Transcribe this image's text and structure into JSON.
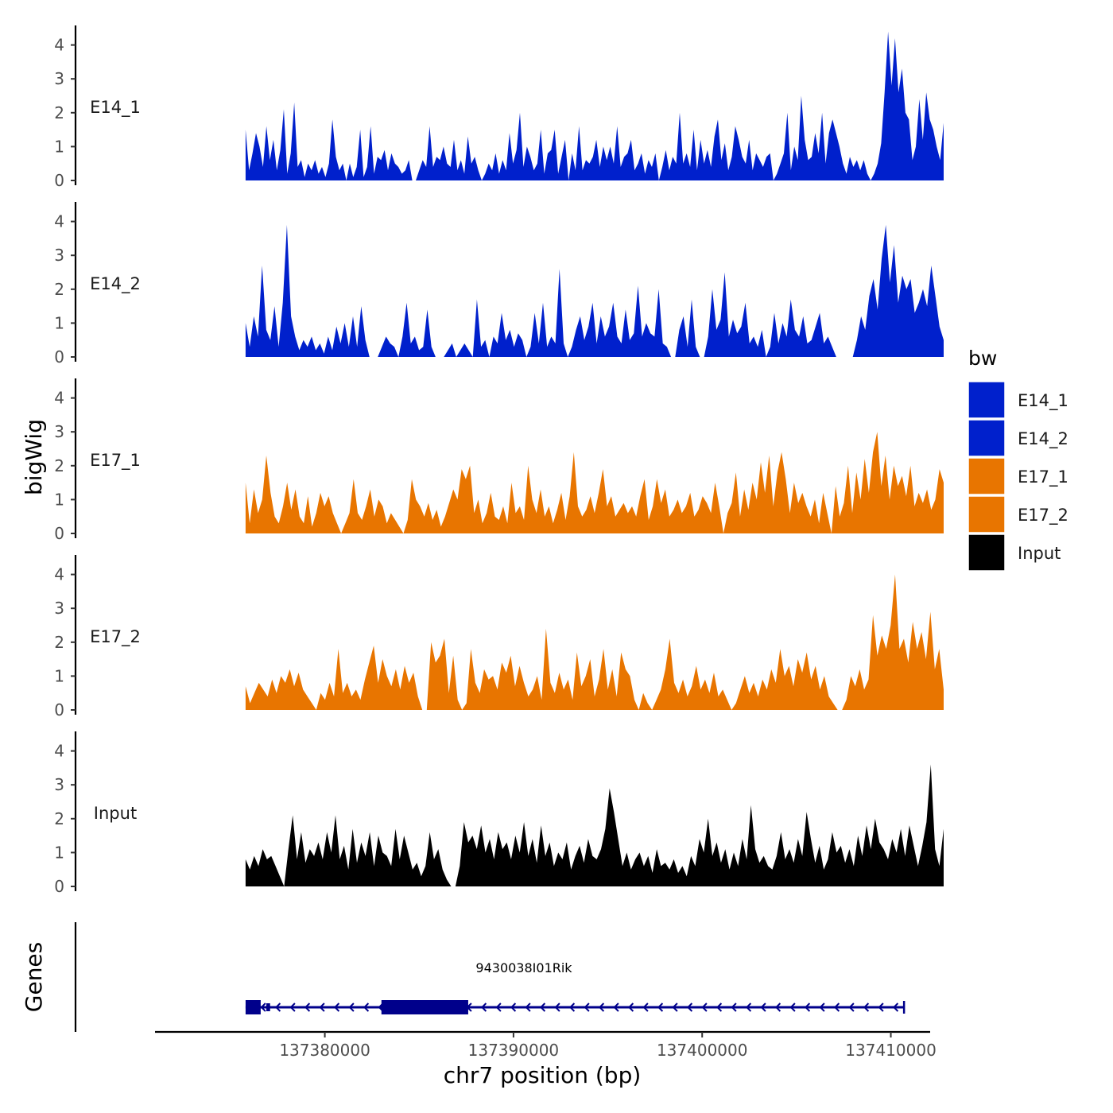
{
  "chart_data": {
    "type": "area",
    "layout": "stacked-tracks",
    "ylabel": "bigWig",
    "xlabel": "chr7 position (bp)",
    "xlim": [
      137371000,
      137412000
    ],
    "x_start": 137375800,
    "x_end": 137412800,
    "ylim": [
      0,
      4.5
    ],
    "y_ticks": [
      0,
      1,
      2,
      3,
      4
    ],
    "x_ticks": [
      137380000,
      137390000,
      137400000,
      137410000
    ],
    "x_tick_labels": [
      "137380000",
      "137390000",
      "137400000",
      "137410000"
    ],
    "legend": {
      "title": "bw",
      "placement": "right",
      "entries": [
        {
          "name": "E14_1",
          "color": "#0020CC"
        },
        {
          "name": "E14_2",
          "color": "#0020CC"
        },
        {
          "name": "E17_1",
          "color": "#E87500"
        },
        {
          "name": "E17_2",
          "color": "#E87500"
        },
        {
          "name": "Input",
          "color": "#000000"
        }
      ]
    },
    "series": [
      {
        "name": "E14_1",
        "label": "E14_1",
        "color": "#0020CC",
        "values": [
          1.5,
          0.3,
          0.8,
          1.4,
          1.0,
          0.4,
          1.6,
          0.6,
          1.2,
          0.3,
          0.9,
          2.1,
          0.2,
          0.8,
          2.3,
          0.4,
          0.6,
          0.1,
          0.5,
          0.3,
          0.6,
          0.2,
          0.4,
          0.1,
          0.5,
          1.8,
          0.7,
          0.3,
          0.5,
          0.0,
          0.5,
          0.1,
          0.4,
          1.5,
          0.1,
          0.4,
          1.6,
          0.2,
          0.7,
          0.6,
          0.9,
          0.3,
          0.8,
          0.5,
          0.4,
          0.2,
          0.3,
          0.6,
          0.0,
          0.0,
          0.3,
          0.6,
          0.4,
          1.6,
          0.4,
          0.7,
          0.6,
          1.0,
          0.5,
          0.4,
          1.2,
          0.3,
          0.6,
          0.2,
          1.3,
          0.5,
          0.7,
          0.3,
          0.0,
          0.2,
          0.5,
          0.3,
          0.8,
          0.2,
          0.6,
          0.3,
          1.4,
          0.5,
          0.9,
          2.0,
          0.4,
          1.0,
          0.7,
          0.3,
          0.5,
          1.5,
          0.2,
          0.8,
          0.9,
          1.5,
          0.2,
          0.7,
          1.2,
          0.0,
          0.8,
          0.3,
          1.6,
          0.3,
          0.6,
          0.5,
          0.7,
          1.2,
          0.4,
          1.0,
          0.6,
          1.0,
          0.5,
          1.6,
          0.4,
          0.7,
          0.8,
          1.2,
          0.3,
          0.5,
          0.8,
          0.2,
          0.6,
          0.4,
          0.8,
          0.0,
          0.4,
          0.9,
          0.3,
          0.7,
          0.5,
          2.0,
          0.5,
          0.8,
          0.4,
          1.5,
          0.3,
          1.2,
          0.5,
          0.9,
          0.4,
          1.3,
          1.8,
          0.6,
          1.1,
          0.3,
          0.7,
          1.6,
          1.2,
          0.7,
          0.5,
          1.2,
          0.3,
          0.8,
          0.6,
          0.4,
          0.7,
          0.8,
          0.0,
          0.2,
          0.5,
          0.8,
          2.0,
          0.3,
          1.0,
          0.6,
          2.5,
          1.2,
          0.6,
          0.7,
          1.4,
          0.8,
          2.0,
          0.5,
          1.4,
          1.8,
          1.4,
          1.0,
          0.5,
          0.2,
          0.7,
          0.4,
          0.6,
          0.3,
          0.6,
          0.2,
          0.0,
          0.2,
          0.5,
          1.1,
          2.6,
          4.4,
          2.8,
          4.2,
          2.6,
          3.3,
          2.0,
          1.8,
          0.6,
          1.0,
          2.4,
          1.2,
          2.6,
          1.8,
          1.5,
          1.0,
          0.6,
          1.7
        ]
      },
      {
        "name": "E14_2",
        "label": "E14_2",
        "color": "#0020CC",
        "values": [
          1.0,
          0.3,
          1.2,
          0.6,
          2.7,
          0.8,
          0.5,
          1.5,
          0.3,
          1.6,
          3.9,
          1.2,
          0.6,
          0.2,
          0.5,
          0.3,
          0.6,
          0.2,
          0.4,
          0.1,
          0.6,
          0.2,
          0.9,
          0.4,
          1.0,
          0.3,
          1.2,
          0.3,
          1.5,
          0.5,
          0.0,
          0.0,
          0.0,
          0.3,
          0.6,
          0.4,
          0.3,
          0.0,
          0.6,
          1.6,
          0.4,
          0.6,
          0.2,
          0.3,
          1.4,
          0.3,
          0.0,
          0.0,
          0.0,
          0.2,
          0.4,
          0.0,
          0.2,
          0.4,
          0.2,
          0.0,
          1.7,
          0.3,
          0.5,
          0.0,
          0.6,
          0.4,
          1.3,
          0.5,
          0.8,
          0.3,
          0.7,
          0.5,
          0.0,
          0.3,
          1.3,
          0.4,
          1.6,
          0.3,
          0.6,
          0.4,
          2.6,
          0.4,
          0.0,
          0.3,
          0.8,
          1.2,
          0.5,
          0.9,
          1.6,
          0.4,
          1.2,
          0.6,
          0.9,
          1.6,
          0.6,
          0.4,
          1.4,
          0.5,
          0.7,
          2.1,
          0.6,
          1.0,
          0.7,
          0.6,
          2.0,
          0.4,
          0.3,
          0.0,
          0.0,
          0.8,
          1.2,
          0.3,
          1.7,
          0.3,
          0.0,
          0.0,
          0.6,
          2.0,
          0.8,
          1.1,
          2.5,
          0.6,
          1.1,
          0.7,
          0.9,
          1.6,
          0.4,
          0.6,
          0.3,
          0.8,
          0.0,
          0.3,
          1.3,
          0.4,
          1.0,
          0.6,
          1.7,
          0.8,
          0.6,
          1.2,
          0.4,
          0.5,
          0.9,
          1.3,
          0.4,
          0.6,
          0.3,
          0.0,
          0.0,
          0.0,
          0.0,
          0.0,
          0.5,
          1.2,
          0.8,
          1.8,
          2.3,
          1.4,
          2.9,
          3.9,
          2.2,
          3.3,
          1.6,
          2.4,
          2.0,
          2.3,
          1.3,
          1.6,
          2.0,
          1.5,
          2.7,
          1.8,
          0.9,
          0.5
        ]
      },
      {
        "name": "E17_1",
        "label": "E17_1",
        "color": "#E87500",
        "values": [
          1.5,
          0.3,
          1.3,
          0.6,
          1.0,
          2.3,
          1.2,
          0.5,
          0.3,
          0.8,
          1.5,
          0.7,
          1.3,
          0.5,
          0.3,
          1.1,
          0.2,
          0.6,
          1.2,
          0.8,
          1.1,
          0.6,
          0.3,
          0.0,
          0.3,
          0.6,
          1.6,
          0.6,
          0.4,
          0.8,
          1.3,
          0.5,
          1.0,
          0.8,
          0.3,
          0.6,
          0.4,
          0.2,
          0.0,
          0.4,
          1.6,
          1.0,
          0.8,
          0.5,
          0.9,
          0.4,
          0.7,
          0.2,
          0.5,
          0.9,
          1.3,
          1.0,
          1.9,
          1.6,
          2.0,
          0.6,
          1.0,
          0.3,
          0.6,
          1.2,
          0.5,
          0.4,
          0.8,
          0.3,
          1.5,
          0.6,
          0.8,
          0.4,
          2.0,
          1.0,
          0.6,
          1.3,
          0.5,
          0.8,
          0.3,
          0.7,
          1.2,
          0.4,
          1.1,
          2.4,
          0.8,
          0.5,
          0.7,
          1.1,
          0.6,
          1.2,
          1.9,
          0.8,
          1.1,
          0.5,
          0.7,
          0.9,
          0.6,
          0.8,
          0.5,
          1.1,
          1.6,
          0.4,
          0.8,
          1.6,
          0.9,
          1.3,
          0.5,
          0.7,
          1.0,
          0.6,
          0.8,
          1.2,
          0.5,
          0.7,
          1.1,
          0.9,
          0.6,
          1.5,
          0.8,
          0.0,
          0.6,
          0.9,
          1.8,
          0.5,
          1.3,
          0.7,
          1.5,
          1.0,
          2.1,
          1.2,
          2.3,
          0.8,
          1.8,
          2.4,
          1.6,
          0.6,
          1.5,
          0.9,
          1.2,
          0.8,
          0.5,
          1.0,
          0.3,
          1.2,
          0.6,
          0.0,
          1.4,
          0.5,
          0.9,
          2.0,
          0.6,
          1.8,
          1.0,
          2.2,
          1.2,
          2.4,
          3.0,
          1.4,
          2.3,
          1.0,
          2.0,
          1.4,
          1.7,
          1.1,
          2.0,
          0.8,
          1.2,
          0.9,
          1.3,
          0.7,
          1.0,
          1.9,
          1.5
        ]
      },
      {
        "name": "E17_2",
        "label": "E17_2",
        "color": "#E87500",
        "values": [
          0.7,
          0.2,
          0.5,
          0.8,
          0.6,
          0.4,
          0.9,
          0.5,
          1.0,
          0.8,
          1.2,
          0.7,
          1.1,
          0.6,
          0.4,
          0.2,
          0.0,
          0.5,
          0.3,
          0.8,
          0.4,
          1.8,
          0.5,
          0.8,
          0.4,
          0.6,
          0.3,
          0.9,
          1.4,
          1.9,
          0.8,
          1.5,
          1.0,
          0.7,
          1.2,
          0.6,
          1.3,
          0.8,
          1.1,
          0.4,
          0.0,
          0.0,
          2.0,
          1.4,
          1.6,
          2.1,
          0.5,
          1.6,
          0.3,
          0.0,
          0.2,
          1.8,
          0.8,
          0.5,
          1.2,
          0.9,
          1.0,
          0.6,
          1.4,
          1.1,
          1.6,
          0.7,
          1.3,
          0.8,
          0.4,
          0.6,
          1.0,
          0.3,
          2.4,
          0.8,
          0.5,
          1.1,
          0.6,
          0.9,
          0.3,
          1.7,
          0.7,
          1.0,
          1.5,
          0.4,
          0.9,
          1.8,
          0.6,
          1.2,
          0.4,
          1.7,
          1.2,
          1.0,
          0.3,
          0.0,
          0.5,
          0.2,
          0.0,
          0.3,
          0.6,
          1.2,
          2.1,
          0.8,
          0.5,
          0.9,
          0.4,
          0.7,
          1.3,
          0.6,
          0.9,
          0.5,
          1.1,
          0.4,
          0.6,
          0.3,
          0.0,
          0.2,
          0.6,
          1.0,
          0.5,
          0.8,
          0.4,
          0.9,
          0.6,
          1.2,
          0.8,
          1.8,
          1.0,
          1.3,
          0.7,
          1.5,
          1.1,
          1.7,
          0.9,
          1.3,
          0.6,
          1.0,
          0.4,
          0.2,
          0.0,
          0.0,
          0.3,
          1.0,
          0.7,
          1.2,
          0.6,
          0.9,
          2.8,
          1.6,
          2.2,
          1.8,
          2.5,
          4.0,
          1.8,
          2.1,
          1.4,
          2.6,
          1.8,
          2.3,
          1.5,
          2.9,
          1.2,
          1.8,
          0.6
        ]
      },
      {
        "name": "Input",
        "label": "Input",
        "color": "#000000",
        "values": [
          0.8,
          0.5,
          0.9,
          0.6,
          1.1,
          0.8,
          0.9,
          0.6,
          0.3,
          0.0,
          1.1,
          2.1,
          0.8,
          1.6,
          0.7,
          1.1,
          0.9,
          1.3,
          0.8,
          1.6,
          1.0,
          2.1,
          0.8,
          1.2,
          0.5,
          1.7,
          0.7,
          1.3,
          0.9,
          1.6,
          0.6,
          1.5,
          1.0,
          0.9,
          0.6,
          1.7,
          0.8,
          1.5,
          1.0,
          0.5,
          0.7,
          0.3,
          0.6,
          1.6,
          0.8,
          1.1,
          0.5,
          0.2,
          0.0,
          0.0,
          0.6,
          1.9,
          1.3,
          1.5,
          1.1,
          1.8,
          1.0,
          1.4,
          0.8,
          1.6,
          1.1,
          1.3,
          0.8,
          1.5,
          1.0,
          1.9,
          0.9,
          1.4,
          0.7,
          1.8,
          0.9,
          1.3,
          0.6,
          1.0,
          0.8,
          1.3,
          0.5,
          0.9,
          1.2,
          0.7,
          1.4,
          0.9,
          0.8,
          1.1,
          1.7,
          2.9,
          2.2,
          1.4,
          0.6,
          1.0,
          0.5,
          0.8,
          1.0,
          0.6,
          0.9,
          0.4,
          1.1,
          0.6,
          0.7,
          0.5,
          0.8,
          0.4,
          0.6,
          0.3,
          0.9,
          0.6,
          1.4,
          1.0,
          2.0,
          0.9,
          1.3,
          0.7,
          1.1,
          0.5,
          1.0,
          0.6,
          1.4,
          0.8,
          2.4,
          1.1,
          0.7,
          0.9,
          0.6,
          0.5,
          0.9,
          1.6,
          0.8,
          1.1,
          0.7,
          1.4,
          0.9,
          2.2,
          1.4,
          0.7,
          1.2,
          0.5,
          0.8,
          1.6,
          1.0,
          1.2,
          0.7,
          1.1,
          0.6,
          1.5,
          0.9,
          1.8,
          1.1,
          2.0,
          1.3,
          1.1,
          0.8,
          1.4,
          1.0,
          1.7,
          0.9,
          1.8,
          1.2,
          0.6,
          1.2,
          1.9,
          3.6,
          1.1,
          0.6,
          1.7
        ]
      }
    ],
    "genes": {
      "title": "Genes",
      "items": [
        {
          "name": "9430038I01Rik",
          "start": 137375800,
          "end": 137410700,
          "strand": "-",
          "exons": [
            [
              137375800,
              137376600
            ],
            [
              137376900,
              137377100
            ],
            [
              137383000,
              137387600
            ]
          ]
        }
      ]
    }
  }
}
